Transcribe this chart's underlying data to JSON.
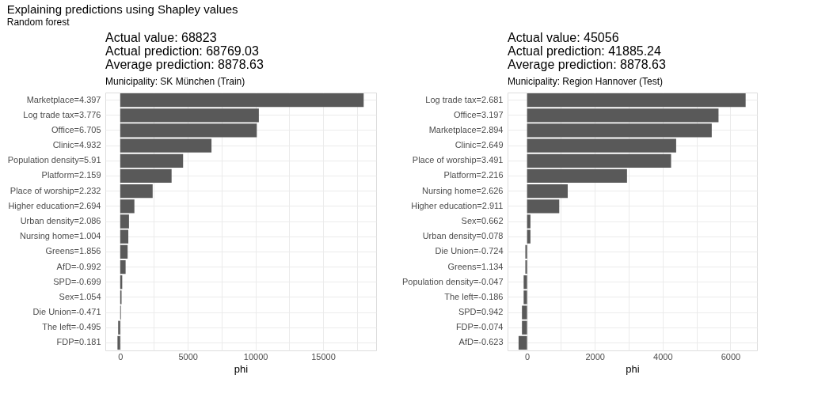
{
  "chart_data": [
    {
      "type": "bar",
      "orientation": "horizontal",
      "title": "Actual value: 68823\nActual prediction: 68769.03\nAverage prediction: 8878.63",
      "subtitle": "Municipality: SK München (Train)",
      "xlabel": "phi",
      "annotations": [
        "Explaining predictions using Shapley values",
        "Random forest"
      ],
      "categories": [
        "Marketplace=4.397",
        "Log trade tax=3.776",
        "Office=6.705",
        "Clinic=4.932",
        "Population density=5.91",
        "Platform=2.159",
        "Place of worship=2.232",
        "Higher education=2.694",
        "Urban density=2.086",
        "Nursing home=1.004",
        "Greens=1.856",
        "AfD=-0.992",
        "SPD=-0.699",
        "Sex=1.054",
        "Die Union=-0.471",
        "The left=-0.495",
        "FDP=0.181"
      ],
      "values": [
        18000,
        10250,
        10100,
        6750,
        4650,
        3800,
        2400,
        1050,
        650,
        600,
        550,
        400,
        150,
        100,
        50,
        -150,
        -200
      ],
      "color": "#595959",
      "xlim": [
        -1100,
        18920
      ],
      "xticks": [
        0,
        {
          "value": 2500,
          "label": null
        },
        5000,
        {
          "value": 7500,
          "label": null
        },
        10000,
        {
          "value": 12500,
          "label": null
        },
        15000,
        {
          "value": 17500,
          "label": null
        }
      ],
      "grid": true
    },
    {
      "type": "bar",
      "orientation": "horizontal",
      "title": "Actual value: 45056\nActual prediction: 41885.24\nAverage prediction: 8878.63",
      "subtitle": "Municipality: Region Hannover (Test)",
      "xlabel": "phi",
      "categories": [
        "Log trade tax=2.681",
        "Office=3.197",
        "Marketplace=2.894",
        "Clinic=2.649",
        "Place of worship=3.491",
        "Platform=2.216",
        "Nursing home=2.626",
        "Higher education=2.911",
        "Sex=0.662",
        "Urban density=0.078",
        "Die Union=-0.724",
        "Greens=1.134",
        "Population density=-0.047",
        "The left=-0.186",
        "SPD=0.942",
        "FDP=-0.074",
        "AfD=-0.623"
      ],
      "values": [
        6450,
        5650,
        5450,
        4400,
        4250,
        2950,
        1200,
        950,
        100,
        100,
        -50,
        -50,
        -100,
        -100,
        -150,
        -150,
        -250
      ],
      "color": "#595959",
      "xlim": [
        -575,
        6785
      ],
      "xticks": [
        0,
        {
          "value": 1000,
          "label": null
        },
        2000,
        {
          "value": 3000,
          "label": null
        },
        4000,
        {
          "value": 5000,
          "label": null
        },
        6000
      ],
      "grid": true
    }
  ]
}
